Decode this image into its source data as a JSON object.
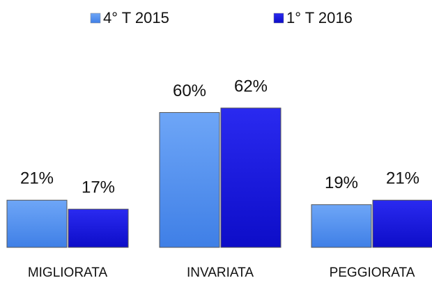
{
  "chart_data": {
    "type": "bar",
    "categories": [
      "MIGLIORATA",
      "INVARIATA",
      "PEGGIORATA"
    ],
    "series": [
      {
        "name": "4° T 2015",
        "color": "#4f8ff0",
        "values": [
          21,
          60,
          19
        ],
        "value_labels": [
          "21%",
          "60%",
          "19%"
        ]
      },
      {
        "name": "1° T 2016",
        "color": "#1515e0",
        "values": [
          17,
          62,
          21
        ],
        "value_labels": [
          "17%",
          "62%",
          "21%"
        ]
      }
    ]
  }
}
